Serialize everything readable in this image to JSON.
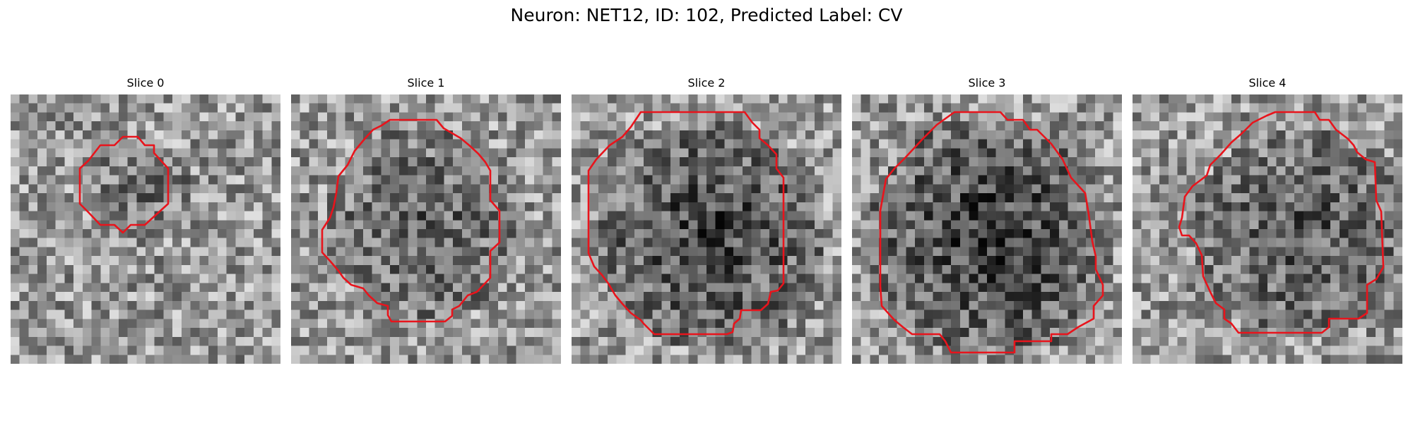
{
  "figure": {
    "title": "Neuron: NET12, ID: 102, Predicted Label: CV"
  },
  "colors": {
    "contour": "#e8141c",
    "background": "#ffffff"
  },
  "panels": [
    {
      "label": "Slice 0"
    },
    {
      "label": "Slice 1"
    },
    {
      "label": "Slice 2"
    },
    {
      "label": "Slice 3"
    },
    {
      "label": "Slice 4"
    }
  ]
}
